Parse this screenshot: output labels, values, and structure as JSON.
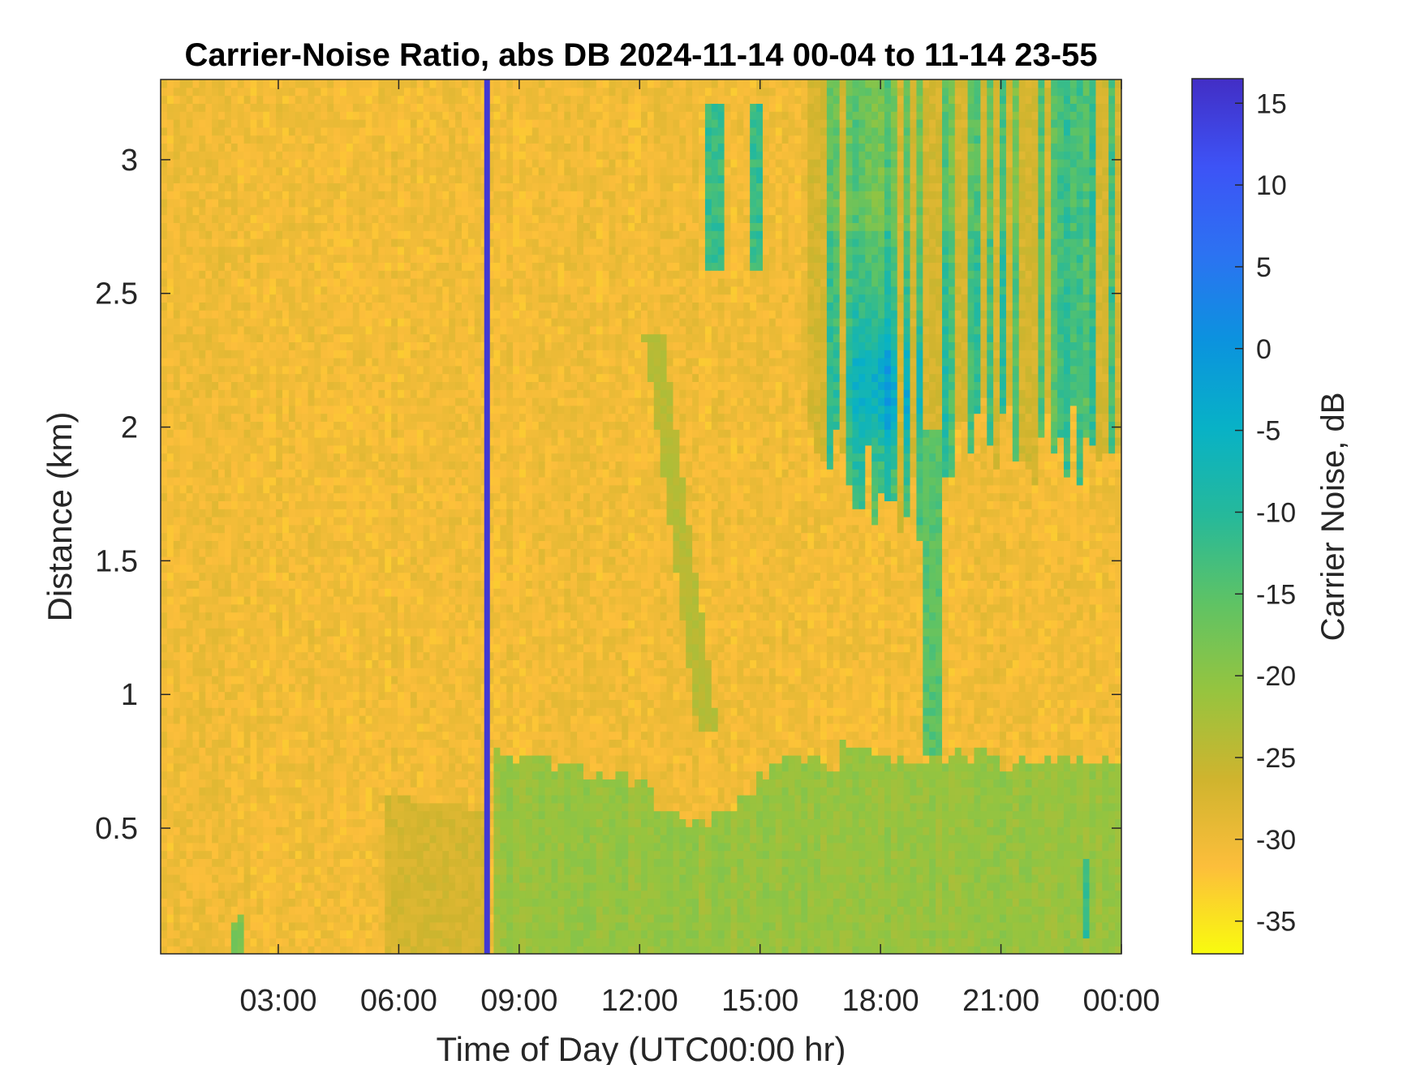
{
  "chart_data": {
    "type": "heatmap",
    "title": "Carrier-Noise Ratio, abs DB 2024-11-14 00-04 to 11-14 23-55",
    "xlabel": "Time of Day (UTC00:00 hr)",
    "ylabel": "Distance (km)",
    "colorbar_label": "Carrier Noise, dB",
    "x_unit": "hours UTC",
    "xlim": [
      0.07,
      24.0
    ],
    "ylim": [
      0.03,
      3.3
    ],
    "x_ticks": [
      3,
      6,
      9,
      12,
      15,
      18,
      21,
      24
    ],
    "x_tick_labels": [
      "03:00",
      "06:00",
      "09:00",
      "12:00",
      "15:00",
      "18:00",
      "21:00",
      "00:00"
    ],
    "y_ticks": [
      0.5,
      1,
      1.5,
      2,
      2.5,
      3
    ],
    "y_tick_labels": [
      "0.5",
      "1",
      "1.5",
      "2",
      "2.5",
      "3"
    ],
    "clim": [
      -37,
      16.5
    ],
    "colorbar_ticks": [
      -35,
      -30,
      -25,
      -20,
      -15,
      -10,
      -5,
      0,
      5,
      10,
      15
    ],
    "colorbar_tick_labels": [
      "-35",
      "-30",
      "-25",
      "-20",
      "-15",
      "-10",
      "-5",
      "0",
      "5",
      "10",
      "15"
    ],
    "colormap": "parula",
    "colormap_stops": [
      "#f9fb0e",
      "#fcbe3b",
      "#cfb42e",
      "#96c43f",
      "#5fc364",
      "#26b99a",
      "#08b2c6",
      "#0b93de",
      "#2c72f2",
      "#3d53f6",
      "#422ec5"
    ],
    "approximate_regions": [
      {
        "description": "background",
        "value_db": -30
      },
      {
        "description": "instrument dropout stripe",
        "x_hours": 8.2,
        "value_db": 15
      },
      {
        "description": "boundary layer",
        "x_hours": [
          8.3,
          24.0
        ],
        "y_km": [
          0.03,
          0.75
        ],
        "value_db": -21
      },
      {
        "description": "near-surface layer before 08:15",
        "x_hours": [
          5.7,
          8.2
        ],
        "y_km": [
          0.03,
          0.6
        ],
        "value_db": -27
      },
      {
        "description": "weak plume",
        "x_hours": [
          12.4,
          13.8
        ],
        "y_km": [
          0.9,
          2.3
        ],
        "value_db": -23
      },
      {
        "description": "streaks",
        "x_hours": [
          13.7,
          15.0
        ],
        "y_km": [
          2.6,
          3.2
        ],
        "value_db": -10
      },
      {
        "description": "cloud region",
        "x_hours": [
          16.2,
          24.0
        ],
        "y_km": [
          1.7,
          3.3
        ],
        "value_db": -10
      },
      {
        "description": "cloud core",
        "x_hours": [
          17.0,
          19.5
        ],
        "y_km": [
          1.9,
          2.4
        ],
        "value_db": -2
      },
      {
        "description": "fall streaks",
        "x_hours": [
          19.0,
          19.6
        ],
        "y_km": [
          0.8,
          1.9
        ],
        "value_db": -15
      },
      {
        "description": "early near-ground feature",
        "x_hours": 2.0,
        "y_km": [
          0.03,
          0.2
        ],
        "value_db": -18
      }
    ]
  }
}
